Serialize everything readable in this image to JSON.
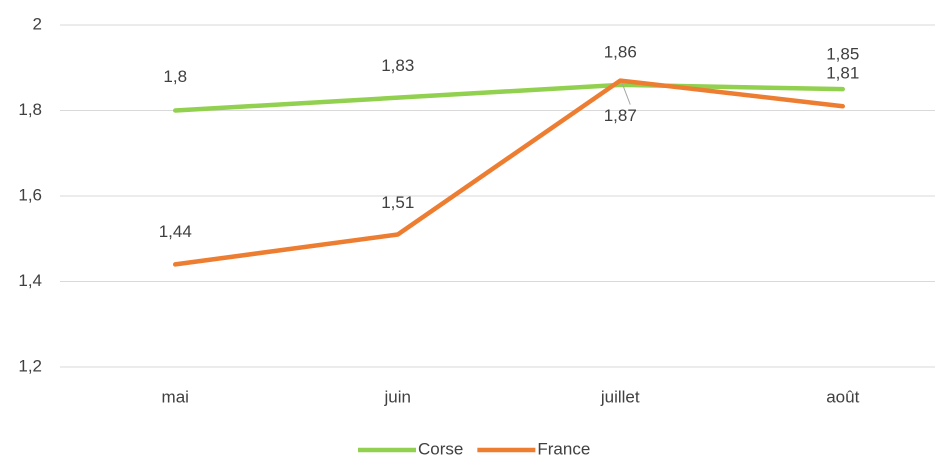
{
  "chart_data": {
    "type": "line",
    "categories": [
      "mai",
      "juin",
      "juillet",
      "août"
    ],
    "series": [
      {
        "name": "Corse",
        "color": "#92d050",
        "values": [
          1.8,
          1.83,
          1.86,
          1.85
        ],
        "value_labels": [
          "1,8",
          "1,83",
          "1,86",
          "1,85"
        ]
      },
      {
        "name": "France",
        "color": "#ed7d31",
        "values": [
          1.44,
          1.51,
          1.87,
          1.81
        ],
        "value_labels": [
          "1,44",
          "1,51",
          "1,87",
          "1,81"
        ]
      }
    ],
    "ylim": [
      1.2,
      2
    ],
    "yticks": [
      {
        "value": 1.2,
        "label": "1,2"
      },
      {
        "value": 1.4,
        "label": "1,4"
      },
      {
        "value": 1.6,
        "label": "1,6"
      },
      {
        "value": 1.8,
        "label": "1,8"
      },
      2
    ],
    "grid": true,
    "legend": "bottom"
  }
}
